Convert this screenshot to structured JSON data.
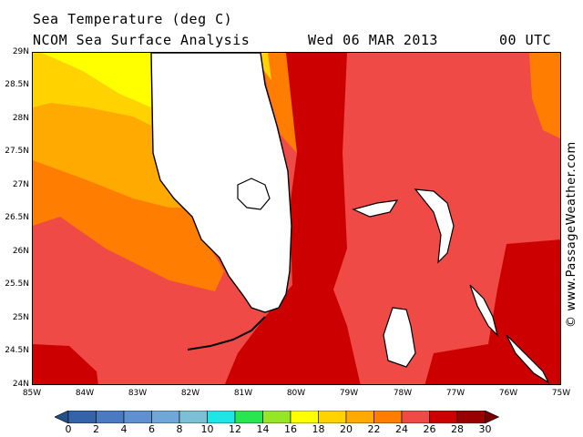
{
  "header": {
    "title": "Sea Temperature (deg C)",
    "subtitle": "NCOM Sea Surface Analysis",
    "date": "Wed 06 MAR 2013",
    "time": "00 UTC"
  },
  "map": {
    "lat_labels": [
      "29N",
      "28.5N",
      "28N",
      "27.5N",
      "27N",
      "26.5N",
      "26N",
      "25.5N",
      "25N",
      "24.5N",
      "24N"
    ],
    "lon_labels": [
      "85W",
      "84W",
      "83W",
      "82W",
      "81W",
      "80W",
      "79W",
      "78W",
      "77W",
      "76W",
      "75W"
    ],
    "regions": [
      "Florida",
      "Bahamas"
    ],
    "colors": {
      "band_16_18": "#ffff00",
      "band_18_20": "#ffd200",
      "band_20_22": "#ffaa00",
      "band_22_24": "#ff7d00",
      "band_24_26": "#ef4a45",
      "band_26_28": "#cd0000",
      "land": "#ffffff"
    }
  },
  "credit": "© www.PassageWeather.com",
  "colorbar": {
    "labels": [
      "0",
      "2",
      "4",
      "6",
      "8",
      "10",
      "12",
      "14",
      "16",
      "18",
      "20",
      "22",
      "24",
      "26",
      "28",
      "30"
    ],
    "colors": [
      "#23508a",
      "#3363a8",
      "#4a7bc2",
      "#5f90d0",
      "#6ea7d8",
      "#7bc0d4",
      "#1ee6e6",
      "#28e650",
      "#96e628",
      "#ffff00",
      "#ffd200",
      "#ffaa00",
      "#ff7d00",
      "#ef4a45",
      "#cd0000",
      "#9a0000",
      "#740000"
    ]
  }
}
